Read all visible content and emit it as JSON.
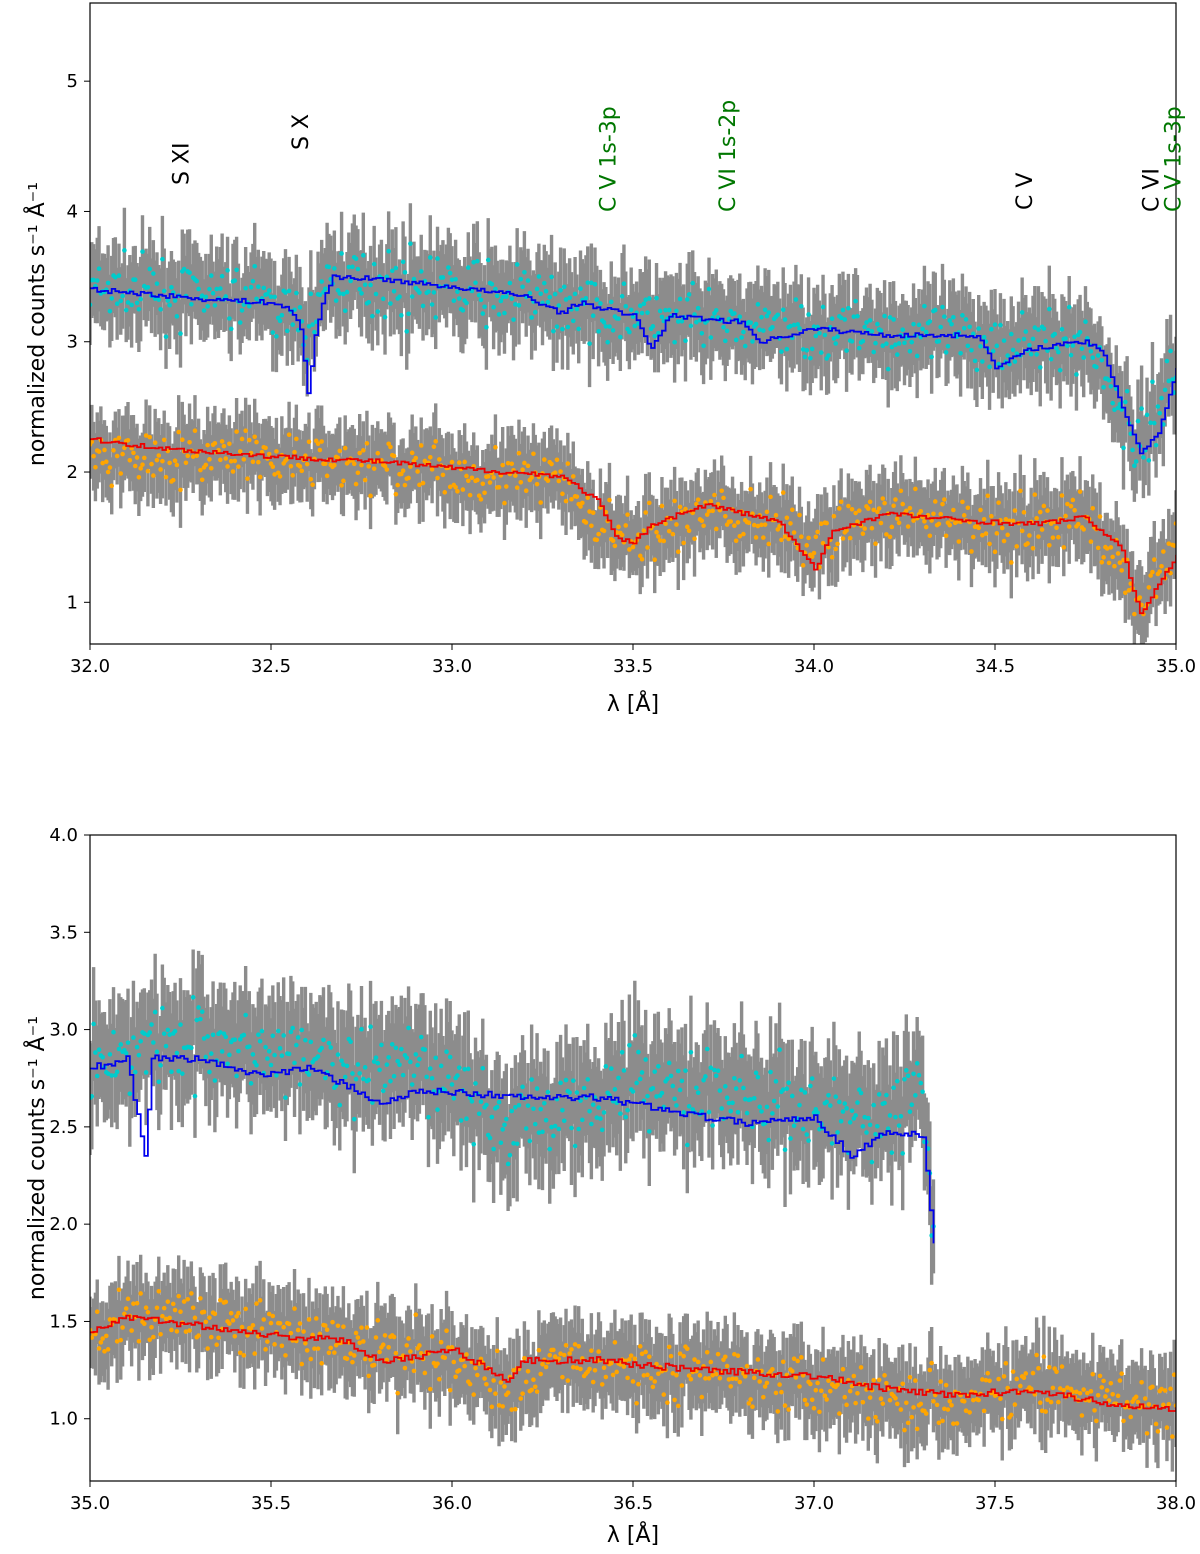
{
  "chart_data": [
    {
      "type": "line",
      "xlabel": "λ [Å]",
      "ylabel": "normalized counts s⁻¹ Å⁻¹",
      "xlim": [
        32.0,
        35.0
      ],
      "ylim": [
        0.68,
        5.6
      ],
      "xticks": [
        32.0,
        32.5,
        33.0,
        33.5,
        34.0,
        34.5,
        35.0
      ],
      "xtick_labels": [
        "32.0",
        "32.5",
        "33.0",
        "33.5",
        "34.0",
        "34.5",
        "35.0"
      ],
      "yticks": [
        1,
        2,
        3,
        4,
        5
      ],
      "ytick_labels": [
        "1",
        "2",
        "3",
        "4",
        "5"
      ],
      "series": [
        {
          "name": "upper data",
          "kind": "errorbar",
          "point_color": "#00cccc",
          "errorbar_color": "#8c8c8c",
          "x_range": [
            32.0,
            35.0
          ],
          "x_step": 0.005,
          "y_at_x": [
            [
              32.0,
              3.4
            ],
            [
              32.5,
              3.32
            ],
            [
              32.6,
              3.05
            ],
            [
              32.65,
              3.5
            ],
            [
              32.8,
              3.45
            ],
            [
              33.0,
              3.4
            ],
            [
              33.3,
              3.3
            ],
            [
              33.6,
              3.15
            ],
            [
              34.0,
              3.1
            ],
            [
              34.5,
              3.0
            ],
            [
              34.75,
              3.0
            ],
            [
              34.85,
              2.5
            ],
            [
              34.9,
              2.15
            ],
            [
              35.0,
              2.85
            ]
          ],
          "yerr": 0.28
        },
        {
          "name": "upper model",
          "kind": "step",
          "color": "#0000ee",
          "points": [
            [
              32.0,
              3.4
            ],
            [
              32.1,
              3.38
            ],
            [
              32.3,
              3.33
            ],
            [
              32.5,
              3.3
            ],
            [
              32.55,
              3.25
            ],
            [
              32.58,
              3.1
            ],
            [
              32.6,
              2.6
            ],
            [
              32.62,
              3.05
            ],
            [
              32.64,
              3.3
            ],
            [
              32.67,
              3.5
            ],
            [
              32.8,
              3.48
            ],
            [
              33.0,
              3.42
            ],
            [
              33.2,
              3.35
            ],
            [
              33.3,
              3.22
            ],
            [
              33.35,
              3.3
            ],
            [
              33.5,
              3.2
            ],
            [
              33.55,
              2.95
            ],
            [
              33.6,
              3.2
            ],
            [
              33.8,
              3.15
            ],
            [
              33.85,
              3.0
            ],
            [
              34.0,
              3.1
            ],
            [
              34.2,
              3.05
            ],
            [
              34.45,
              3.05
            ],
            [
              34.5,
              2.8
            ],
            [
              34.6,
              2.95
            ],
            [
              34.75,
              3.0
            ],
            [
              34.8,
              2.9
            ],
            [
              34.85,
              2.5
            ],
            [
              34.9,
              2.15
            ],
            [
              34.95,
              2.3
            ],
            [
              35.0,
              2.8
            ]
          ]
        },
        {
          "name": "lower data",
          "kind": "errorbar",
          "point_color": "#ffa500",
          "errorbar_color": "#8c8c8c",
          "x_range": [
            32.0,
            35.0
          ],
          "x_step": 0.005,
          "y_at_x": [
            [
              32.0,
              2.15
            ],
            [
              32.5,
              2.1
            ],
            [
              33.0,
              2.0
            ],
            [
              33.3,
              1.95
            ],
            [
              33.4,
              1.6
            ],
            [
              33.5,
              1.45
            ],
            [
              33.7,
              1.7
            ],
            [
              33.95,
              1.55
            ],
            [
              34.0,
              1.4
            ],
            [
              34.1,
              1.65
            ],
            [
              34.5,
              1.6
            ],
            [
              34.75,
              1.65
            ],
            [
              34.85,
              1.3
            ],
            [
              34.9,
              0.95
            ],
            [
              35.0,
              1.45
            ]
          ],
          "yerr": 0.25
        },
        {
          "name": "lower model",
          "kind": "step",
          "color": "#ee0000",
          "points": [
            [
              32.0,
              2.25
            ],
            [
              32.2,
              2.18
            ],
            [
              32.5,
              2.12
            ],
            [
              32.8,
              2.08
            ],
            [
              33.0,
              2.03
            ],
            [
              33.3,
              1.97
            ],
            [
              33.4,
              1.78
            ],
            [
              33.45,
              1.5
            ],
            [
              33.5,
              1.45
            ],
            [
              33.55,
              1.6
            ],
            [
              33.7,
              1.75
            ],
            [
              33.9,
              1.62
            ],
            [
              34.0,
              1.25
            ],
            [
              34.05,
              1.55
            ],
            [
              34.2,
              1.68
            ],
            [
              34.4,
              1.63
            ],
            [
              34.6,
              1.6
            ],
            [
              34.75,
              1.65
            ],
            [
              34.85,
              1.4
            ],
            [
              34.9,
              0.9
            ],
            [
              34.95,
              1.15
            ],
            [
              35.0,
              1.35
            ]
          ]
        }
      ],
      "annotations": [
        {
          "text": "S XI",
          "x": 32.25,
          "color": "#000000"
        },
        {
          "text": "S X",
          "x": 32.58,
          "color": "#000000"
        },
        {
          "text": "C V 1s-3p",
          "x": 33.43,
          "color": "#007700"
        },
        {
          "text": "C VI 1s-2p",
          "x": 33.76,
          "color": "#007700"
        },
        {
          "text": "C V",
          "x": 34.58,
          "color": "#000000"
        },
        {
          "text": "C VI",
          "x": 34.93,
          "color": "#000000"
        },
        {
          "text": "C V 1s-3p",
          "x": 34.99,
          "color": "#007700"
        }
      ]
    },
    {
      "type": "line",
      "xlabel": "λ [Å]",
      "ylabel": "normalized counts s⁻¹ Å⁻¹",
      "xlim": [
        35.0,
        38.0
      ],
      "ylim": [
        0.68,
        4.0
      ],
      "xticks": [
        35.0,
        35.5,
        36.0,
        36.5,
        37.0,
        37.5,
        38.0
      ],
      "xtick_labels": [
        "35.0",
        "35.5",
        "36.0",
        "36.5",
        "37.0",
        "37.5",
        "38.0"
      ],
      "yticks": [
        1.0,
        1.5,
        2.0,
        2.5,
        3.0,
        3.5,
        4.0
      ],
      "ytick_labels": [
        "1.0",
        "1.5",
        "2.0",
        "2.5",
        "3.0",
        "3.5",
        "4.0"
      ],
      "series": [
        {
          "name": "upper data",
          "kind": "errorbar",
          "point_color": "#00cccc",
          "errorbar_color": "#8c8c8c",
          "x_range": [
            35.0,
            37.33
          ],
          "x_step": 0.005,
          "y_at_x": [
            [
              35.0,
              2.85
            ],
            [
              35.2,
              2.95
            ],
            [
              35.5,
              2.9
            ],
            [
              35.8,
              2.8
            ],
            [
              36.0,
              2.75
            ],
            [
              36.15,
              2.5
            ],
            [
              36.5,
              2.75
            ],
            [
              36.8,
              2.65
            ],
            [
              37.0,
              2.6
            ],
            [
              37.2,
              2.5
            ],
            [
              37.3,
              2.7
            ],
            [
              37.33,
              1.9
            ]
          ],
          "yerr": 0.25
        },
        {
          "name": "upper model",
          "kind": "step",
          "color": "#0000ee",
          "points": [
            [
              35.0,
              2.8
            ],
            [
              35.1,
              2.85
            ],
            [
              35.15,
              2.35
            ],
            [
              35.17,
              2.85
            ],
            [
              35.3,
              2.85
            ],
            [
              35.45,
              2.77
            ],
            [
              35.6,
              2.8
            ],
            [
              35.7,
              2.72
            ],
            [
              35.8,
              2.62
            ],
            [
              35.9,
              2.68
            ],
            [
              36.0,
              2.68
            ],
            [
              36.2,
              2.65
            ],
            [
              36.4,
              2.65
            ],
            [
              36.5,
              2.62
            ],
            [
              36.7,
              2.55
            ],
            [
              36.8,
              2.52
            ],
            [
              37.0,
              2.55
            ],
            [
              37.1,
              2.35
            ],
            [
              37.2,
              2.48
            ],
            [
              37.3,
              2.45
            ],
            [
              37.33,
              1.9
            ]
          ]
        },
        {
          "name": "lower data",
          "kind": "errorbar",
          "point_color": "#ffa500",
          "errorbar_color": "#8c8c8c",
          "x_range": [
            35.0,
            38.0
          ],
          "x_step": 0.005,
          "y_at_x": [
            [
              35.0,
              1.45
            ],
            [
              35.2,
              1.55
            ],
            [
              35.5,
              1.45
            ],
            [
              35.8,
              1.35
            ],
            [
              36.0,
              1.3
            ],
            [
              36.15,
              1.15
            ],
            [
              36.3,
              1.3
            ],
            [
              36.6,
              1.25
            ],
            [
              37.0,
              1.2
            ],
            [
              37.3,
              1.1
            ],
            [
              37.6,
              1.15
            ],
            [
              38.0,
              1.05
            ]
          ],
          "yerr": 0.18
        },
        {
          "name": "lower model",
          "kind": "step",
          "color": "#ee0000",
          "points": [
            [
              35.0,
              1.45
            ],
            [
              35.1,
              1.52
            ],
            [
              35.3,
              1.48
            ],
            [
              35.5,
              1.43
            ],
            [
              35.7,
              1.4
            ],
            [
              35.8,
              1.3
            ],
            [
              35.9,
              1.32
            ],
            [
              36.0,
              1.36
            ],
            [
              36.15,
              1.2
            ],
            [
              36.2,
              1.3
            ],
            [
              36.4,
              1.3
            ],
            [
              36.5,
              1.28
            ],
            [
              36.7,
              1.25
            ],
            [
              37.0,
              1.22
            ],
            [
              37.2,
              1.15
            ],
            [
              37.4,
              1.12
            ],
            [
              37.6,
              1.15
            ],
            [
              37.8,
              1.08
            ],
            [
              38.0,
              1.05
            ]
          ]
        }
      ],
      "annotations": []
    }
  ]
}
